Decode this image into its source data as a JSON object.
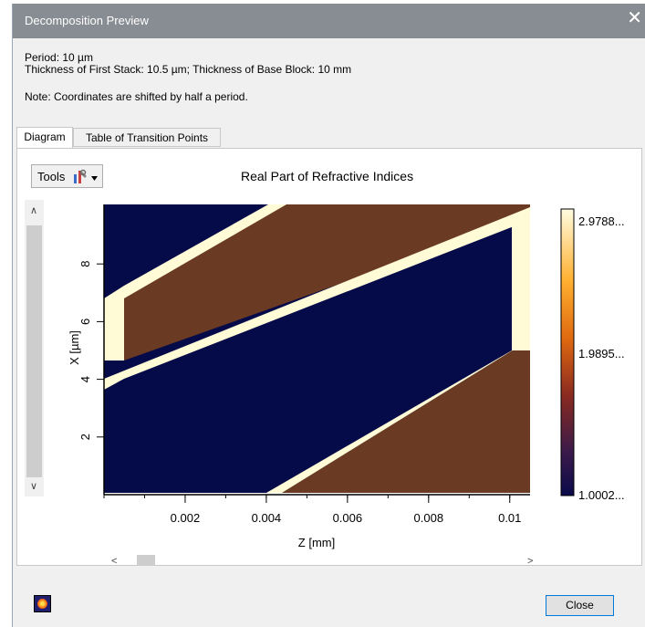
{
  "window": {
    "title": "Decomposition Preview",
    "close_glyph": "✕"
  },
  "info": {
    "period": "Period: 10 µm",
    "thickness": "Thickness of First Stack: 10.5 µm; Thickness of Base Block: 10 mm",
    "note": "Note: Coordinates are shifted by half a period."
  },
  "tabs": [
    {
      "label": "Diagram",
      "active": true
    },
    {
      "label": "Table of Transition Points",
      "active": false
    }
  ],
  "toolbar": {
    "tools_label": "Tools",
    "tools_icon": "tools-icon"
  },
  "chart_data": {
    "type": "heatmap",
    "title": "Real Part of Refractive Indices",
    "xlabel": "Z [mm]",
    "ylabel": "X [µm]",
    "xlim": [
      0,
      0.0105
    ],
    "ylim": [
      0,
      10
    ],
    "x_ticks": [
      "0.002",
      "0.004",
      "0.006",
      "0.008",
      "0.01"
    ],
    "y_ticks": [
      "2",
      "4",
      "6",
      "8"
    ],
    "colorbar": {
      "labels": [
        "2.9788...",
        "1.9895...",
        "1.0002..."
      ],
      "colors": [
        "#fffce0",
        "#ff8000",
        "#0a0a4a"
      ]
    },
    "region_colors": {
      "low_index": "#050a48",
      "high_index": "#6a3a22",
      "boundary": "#fffbd6"
    }
  },
  "footer": {
    "close_label": "Close"
  }
}
